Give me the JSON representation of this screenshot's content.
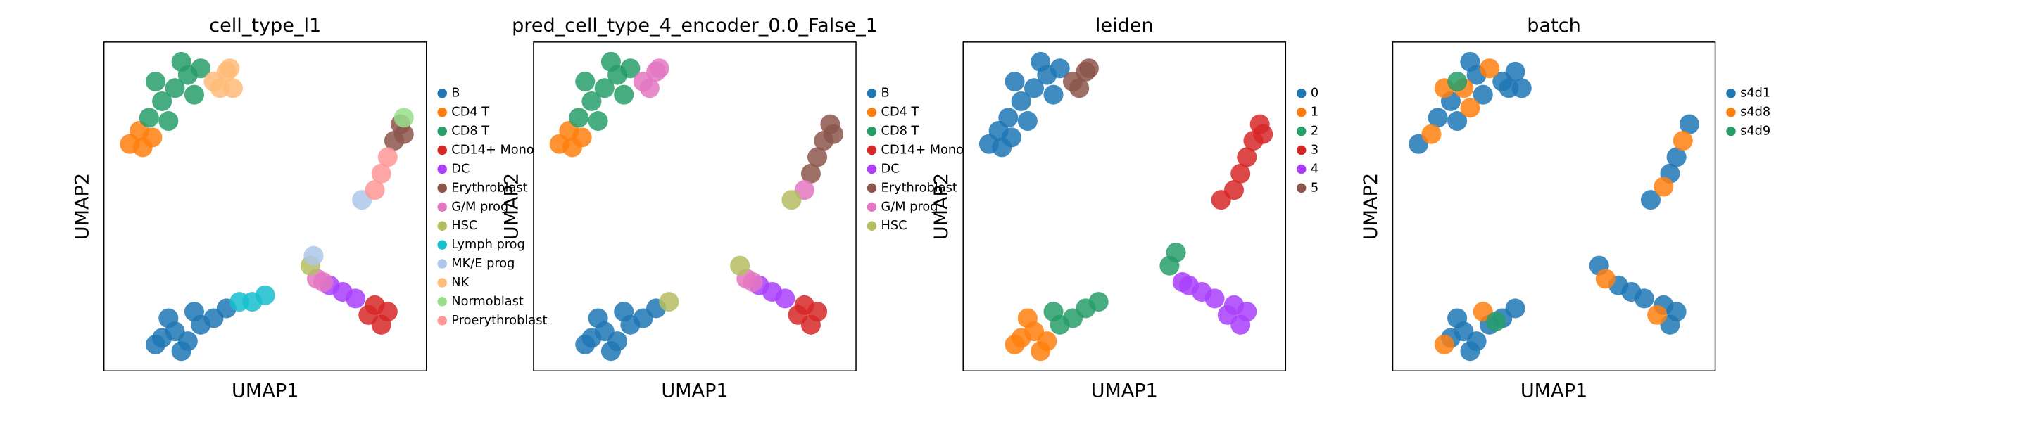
{
  "chart_data": [
    {
      "type": "scatter",
      "title": "cell_type_l1",
      "xlabel": "UMAP1",
      "ylabel": "UMAP2",
      "xlim": [
        0,
        100
      ],
      "ylim": [
        0,
        100
      ],
      "series": [
        {
          "name": "B",
          "color": "#1f77b4",
          "x": [
            18,
            22,
            26,
            30,
            34,
            38,
            20,
            28,
            24,
            16
          ],
          "y": [
            10,
            12,
            9,
            14,
            16,
            19,
            16,
            18,
            6,
            8
          ]
        },
        {
          "name": "CD4 T",
          "color": "#ff7f0e",
          "x": [
            8,
            12,
            11,
            15
          ],
          "y": [
            69,
            68,
            73,
            71
          ]
        },
        {
          "name": "CD8 T",
          "color": "#279e68",
          "x": [
            14,
            18,
            22,
            26,
            20,
            28,
            16,
            24,
            30
          ],
          "y": [
            77,
            82,
            86,
            90,
            76,
            84,
            88,
            94,
            92
          ]
        },
        {
          "name": "CD14+ Mono",
          "color": "#d62728",
          "x": [
            84,
            88,
            86,
            82
          ],
          "y": [
            20,
            18,
            14,
            17
          ]
        },
        {
          "name": "DC",
          "color": "#aa40fc",
          "x": [
            70,
            74,
            78
          ],
          "y": [
            26,
            24,
            22
          ]
        },
        {
          "name": "Erythroblast",
          "color": "#8c564b",
          "x": [
            90,
            92,
            93
          ],
          "y": [
            70,
            75,
            72
          ]
        },
        {
          "name": "G/M prog",
          "color": "#e377c2",
          "x": [
            66,
            68
          ],
          "y": [
            28,
            27
          ]
        },
        {
          "name": "HSC",
          "color": "#b5bd61",
          "x": [
            64
          ],
          "y": [
            32
          ]
        },
        {
          "name": "Lymph prog",
          "color": "#17becf",
          "x": [
            42,
            46,
            50
          ],
          "y": [
            21,
            21,
            23
          ]
        },
        {
          "name": "MK/E prog",
          "color": "#aec7e8",
          "x": [
            80,
            65
          ],
          "y": [
            52,
            35
          ]
        },
        {
          "name": "NK",
          "color": "#ffbb78",
          "x": [
            34,
            38,
            36,
            39,
            40
          ],
          "y": [
            88,
            91,
            86,
            92,
            86
          ]
        },
        {
          "name": "Normoblast",
          "color": "#98df8a",
          "x": [
            93
          ],
          "y": [
            77
          ]
        },
        {
          "name": "Proerythroblast",
          "color": "#ff9896",
          "x": [
            84,
            86,
            88
          ],
          "y": [
            55,
            60,
            65
          ]
        }
      ]
    },
    {
      "type": "scatter",
      "title": "pred_cell_type_4_encoder_0.0_False_1",
      "xlabel": "UMAP1",
      "ylabel": "UMAP2",
      "xlim": [
        0,
        100
      ],
      "ylim": [
        0,
        100
      ],
      "series": [
        {
          "name": "B",
          "color": "#1f77b4",
          "x": [
            18,
            22,
            26,
            30,
            34,
            38,
            20,
            28,
            24,
            16
          ],
          "y": [
            10,
            12,
            9,
            14,
            16,
            19,
            16,
            18,
            6,
            8
          ]
        },
        {
          "name": "CD4 T",
          "color": "#ff7f0e",
          "x": [
            8,
            12,
            11,
            15
          ],
          "y": [
            69,
            68,
            73,
            71
          ]
        },
        {
          "name": "CD8 T",
          "color": "#279e68",
          "x": [
            14,
            18,
            22,
            26,
            20,
            28,
            16,
            24,
            30
          ],
          "y": [
            77,
            82,
            86,
            90,
            76,
            84,
            88,
            94,
            92
          ]
        },
        {
          "name": "CD14+ Mono",
          "color": "#d62728",
          "x": [
            84,
            88,
            86,
            82
          ],
          "y": [
            20,
            18,
            14,
            17
          ]
        },
        {
          "name": "DC",
          "color": "#aa40fc",
          "x": [
            70,
            74,
            78
          ],
          "y": [
            26,
            24,
            22
          ]
        },
        {
          "name": "Erythroblast",
          "color": "#8c564b",
          "x": [
            86,
            88,
            90,
            92,
            93
          ],
          "y": [
            60,
            65,
            70,
            75,
            72
          ]
        },
        {
          "name": "G/M prog",
          "color": "#e377c2",
          "x": [
            34,
            38,
            36,
            39,
            66,
            68,
            84
          ],
          "y": [
            88,
            91,
            86,
            92,
            28,
            27,
            55
          ]
        },
        {
          "name": "HSC",
          "color": "#b5bd61",
          "x": [
            64,
            80,
            42
          ],
          "y": [
            32,
            52,
            21
          ]
        }
      ]
    },
    {
      "type": "scatter",
      "title": "leiden",
      "xlabel": "UMAP1",
      "ylabel": "UMAP2",
      "xlim": [
        0,
        100
      ],
      "ylim": [
        0,
        100
      ],
      "series": [
        {
          "name": "0",
          "color": "#1f77b4",
          "x": [
            8,
            12,
            11,
            15,
            14,
            18,
            22,
            26,
            20,
            28,
            16,
            24,
            30
          ],
          "y": [
            69,
            68,
            73,
            71,
            77,
            82,
            86,
            90,
            76,
            84,
            88,
            94,
            92
          ]
        },
        {
          "name": "1",
          "color": "#ff7f0e",
          "x": [
            18,
            22,
            26,
            20,
            24,
            16
          ],
          "y": [
            10,
            12,
            9,
            16,
            6,
            8
          ]
        },
        {
          "name": "2",
          "color": "#279e68",
          "x": [
            30,
            34,
            38,
            28,
            42,
            64,
            66
          ],
          "y": [
            14,
            16,
            19,
            18,
            21,
            32,
            36
          ]
        },
        {
          "name": "3",
          "color": "#d62728",
          "x": [
            80,
            84,
            86,
            88,
            90,
            92,
            93
          ],
          "y": [
            52,
            55,
            60,
            65,
            70,
            75,
            72
          ]
        },
        {
          "name": "4",
          "color": "#aa40fc",
          "x": [
            68,
            70,
            74,
            78,
            84,
            88,
            86,
            82
          ],
          "y": [
            27,
            26,
            24,
            22,
            20,
            18,
            14,
            17
          ]
        },
        {
          "name": "5",
          "color": "#8c564b",
          "x": [
            34,
            38,
            36,
            39
          ],
          "y": [
            88,
            91,
            86,
            92
          ]
        }
      ]
    },
    {
      "type": "scatter",
      "title": "batch",
      "xlabel": "UMAP1",
      "ylabel": "UMAP2",
      "xlim": [
        0,
        100
      ],
      "ylim": [
        0,
        100
      ],
      "series": [
        {
          "name": "s4d1",
          "color": "#1f77b4",
          "x": [
            8,
            14,
            18,
            26,
            20,
            28,
            24,
            34,
            38,
            36,
            40,
            80,
            86,
            88,
            92,
            18,
            22,
            26,
            30,
            34,
            38,
            20,
            24,
            64,
            70,
            74,
            78,
            84,
            88,
            86
          ],
          "y": [
            69,
            77,
            82,
            90,
            76,
            84,
            94,
            88,
            91,
            86,
            86,
            52,
            60,
            65,
            75,
            10,
            12,
            9,
            14,
            16,
            19,
            16,
            6,
            32,
            26,
            24,
            22,
            20,
            18,
            14
          ]
        },
        {
          "name": "s4d8",
          "color": "#ff7f0e",
          "x": [
            12,
            16,
            22,
            30,
            24,
            84,
            90,
            28,
            16,
            66,
            82
          ],
          "y": [
            72,
            86,
            86,
            92,
            80,
            56,
            70,
            18,
            8,
            28,
            17
          ]
        },
        {
          "name": "s4d9",
          "color": "#279e68",
          "x": [
            20,
            32
          ],
          "y": [
            88,
            15
          ]
        }
      ]
    }
  ]
}
